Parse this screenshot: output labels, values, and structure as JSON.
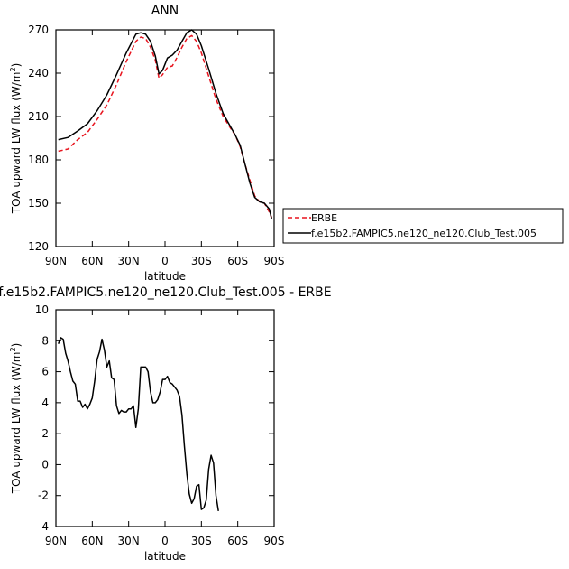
{
  "chart_data": [
    {
      "type": "line",
      "title": "ANN",
      "xlabel": "latitude",
      "ylabel": "TOA upward LW flux (W/m²)",
      "ylabel_main": "TOA upward LW flux (W/m",
      "ylabel_sup": "2",
      "ylabel_end": ")",
      "xlim": [
        90,
        -90
      ],
      "ylim": [
        120,
        270
      ],
      "x_ticks": [
        90,
        60,
        30,
        0,
        -30,
        -60,
        -90
      ],
      "x_tick_labels": [
        "90N",
        "60N",
        "30N",
        "0",
        "30S",
        "60S",
        "90S"
      ],
      "y_ticks": [
        120,
        150,
        180,
        210,
        240,
        270
      ],
      "y_tick_labels": [
        "120",
        "150",
        "180",
        "210",
        "240",
        "270"
      ],
      "legend_position": "right",
      "series": [
        {
          "name": "ERBE",
          "color": "#e8141e",
          "dash": "dashed",
          "points": [
            [
              88,
              186
            ],
            [
              80,
              187.5
            ],
            [
              72,
              194
            ],
            [
              64,
              199
            ],
            [
              56,
              208
            ],
            [
              48,
              218
            ],
            [
              40,
              232
            ],
            [
              32,
              248
            ],
            [
              24,
              262
            ],
            [
              20,
              265
            ],
            [
              16,
              264
            ],
            [
              12,
              258
            ],
            [
              8,
              249
            ],
            [
              5,
              236.5
            ],
            [
              2,
              239
            ],
            [
              -2,
              244
            ],
            [
              -6,
              245
            ],
            [
              -10,
              251
            ],
            [
              -14,
              258
            ],
            [
              -18,
              264
            ],
            [
              -22,
              266
            ],
            [
              -26,
              262
            ],
            [
              -30,
              254
            ],
            [
              -36,
              238
            ],
            [
              -42,
              222
            ],
            [
              -48,
              210
            ],
            [
              -54,
              202
            ],
            [
              -58,
              197
            ],
            [
              -62,
              189
            ],
            [
              -66,
              177
            ],
            [
              -70,
              166
            ],
            [
              -74,
              155
            ],
            [
              -78,
              151
            ],
            [
              -82,
              150
            ],
            [
              -86,
              144
            ],
            [
              -88,
              140
            ]
          ]
        },
        {
          "name": "f.e15b2.FAMPIC5.ne120_ne120.Club_Test.005",
          "color": "#000000",
          "dash": "solid",
          "points": [
            [
              88,
              194
            ],
            [
              80,
              195.5
            ],
            [
              72,
              200
            ],
            [
              64,
              205
            ],
            [
              56,
              214
            ],
            [
              48,
              225
            ],
            [
              40,
              239
            ],
            [
              32,
              254
            ],
            [
              24,
              267
            ],
            [
              20,
              268
            ],
            [
              16,
              267
            ],
            [
              12,
              262
            ],
            [
              8,
              252
            ],
            [
              5,
              239.5
            ],
            [
              2,
              242
            ],
            [
              -2,
              250.5
            ],
            [
              -6,
              252.5
            ],
            [
              -10,
              256
            ],
            [
              -14,
              262
            ],
            [
              -18,
              268
            ],
            [
              -22,
              270
            ],
            [
              -26,
              267
            ],
            [
              -30,
              259
            ],
            [
              -36,
              243
            ],
            [
              -42,
              226
            ],
            [
              -48,
              212
            ],
            [
              -54,
              203
            ],
            [
              -58,
              197
            ],
            [
              -62,
              190
            ],
            [
              -66,
              177
            ],
            [
              -70,
              164
            ],
            [
              -74,
              154
            ],
            [
              -78,
              151
            ],
            [
              -82,
              150
            ],
            [
              -86,
              146
            ],
            [
              -88,
              139
            ]
          ]
        }
      ]
    },
    {
      "type": "line",
      "title": "f.e15b2.FAMPIC5.ne120_ne120.Club_Test.005 - ERBE",
      "xlabel": "latitude",
      "ylabel": "TOA upward LW flux (W/m²)",
      "ylabel_main": "TOA upward LW flux (W/m",
      "ylabel_sup": "2",
      "ylabel_end": ")",
      "xlim": [
        90,
        -90
      ],
      "ylim": [
        -4,
        10
      ],
      "x_ticks": [
        90,
        60,
        30,
        0,
        -30,
        -60,
        -90
      ],
      "x_tick_labels": [
        "90N",
        "60N",
        "30N",
        "0",
        "30S",
        "60S",
        "90S"
      ],
      "y_ticks": [
        -4,
        -2,
        0,
        2,
        4,
        6,
        8,
        10
      ],
      "y_tick_labels": [
        "-4",
        "-2",
        "0",
        "2",
        "4",
        "6",
        "8",
        "10"
      ],
      "series": [
        {
          "color": "#000000",
          "dash": "solid",
          "points": [
            [
              88,
              7.8
            ],
            [
              86,
              8.2
            ],
            [
              84,
              8.1
            ],
            [
              82,
              7.2
            ],
            [
              80,
              6.7
            ],
            [
              78,
              6.0
            ],
            [
              76,
              5.4
            ],
            [
              74,
              5.2
            ],
            [
              72,
              4.1
            ],
            [
              70,
              4.1
            ],
            [
              68,
              3.7
            ],
            [
              66,
              3.9
            ],
            [
              64,
              3.6
            ],
            [
              62,
              3.9
            ],
            [
              60,
              4.3
            ],
            [
              58,
              5.4
            ],
            [
              56,
              6.8
            ],
            [
              54,
              7.3
            ],
            [
              52,
              8.1
            ],
            [
              50,
              7.4
            ],
            [
              48,
              6.3
            ],
            [
              46,
              6.7
            ],
            [
              44,
              5.6
            ],
            [
              42,
              5.5
            ],
            [
              40,
              3.8
            ],
            [
              38,
              3.3
            ],
            [
              36,
              3.5
            ],
            [
              34,
              3.4
            ],
            [
              32,
              3.4
            ],
            [
              30,
              3.6
            ],
            [
              28,
              3.6
            ],
            [
              26,
              3.8
            ],
            [
              24,
              2.4
            ],
            [
              22,
              3.6
            ],
            [
              20,
              6.3
            ],
            [
              18,
              6.3
            ],
            [
              16,
              6.3
            ],
            [
              14,
              6.0
            ],
            [
              12,
              4.7
            ],
            [
              10,
              4.0
            ],
            [
              8,
              4.0
            ],
            [
              6,
              4.2
            ],
            [
              4,
              4.7
            ],
            [
              2,
              5.5
            ],
            [
              0,
              5.5
            ],
            [
              -2,
              5.7
            ],
            [
              -4,
              5.3
            ],
            [
              -6,
              5.2
            ],
            [
              -8,
              5.0
            ],
            [
              -10,
              4.8
            ],
            [
              -12,
              4.4
            ],
            [
              -14,
              3.2
            ],
            [
              -16,
              1.2
            ],
            [
              -18,
              -0.6
            ],
            [
              -20,
              -1.9
            ],
            [
              -22,
              -2.5
            ],
            [
              -24,
              -2.2
            ],
            [
              -26,
              -1.4
            ],
            [
              -28,
              -1.3
            ],
            [
              -30,
              -2.9
            ],
            [
              -32,
              -2.8
            ],
            [
              -34,
              -2.3
            ],
            [
              -36,
              -0.3
            ],
            [
              -38,
              0.6
            ],
            [
              -40,
              0.1
            ],
            [
              -42,
              -2.0
            ],
            [
              -44,
              -3.0
            ]
          ]
        }
      ]
    }
  ]
}
